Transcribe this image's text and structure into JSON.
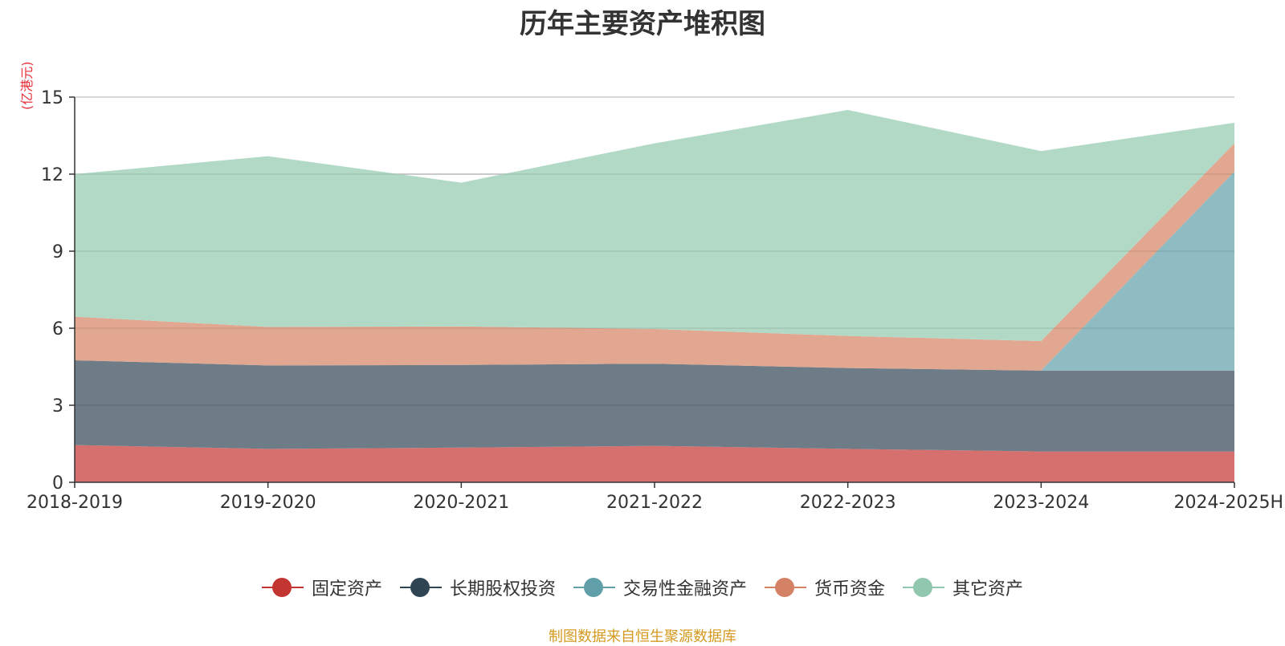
{
  "chart_data": {
    "type": "area",
    "stacked": true,
    "title": "历年主要资产堆积图",
    "unit": "(亿港元)",
    "categories": [
      "2018-2019",
      "2019-2020",
      "2020-2021",
      "2021-2022",
      "2022-2023",
      "2023-2024",
      "2024-2025H"
    ],
    "ylim": [
      0,
      15
    ],
    "yticks": [
      0,
      3,
      6,
      9,
      12,
      15
    ],
    "grid": true,
    "legend_position": "bottom",
    "series": [
      {
        "name": "固定资产",
        "color": "#c23531",
        "fill": "#d5706e",
        "values": [
          1.45,
          1.3,
          1.35,
          1.42,
          1.3,
          1.2,
          1.2
        ]
      },
      {
        "name": "长期股权投资",
        "color": "#2f4554",
        "fill": "#6e7c87",
        "values": [
          3.3,
          3.25,
          3.22,
          3.2,
          3.15,
          3.15,
          3.15
        ]
      },
      {
        "name": "交易性金融资产",
        "color": "#61a0a8",
        "fill": "#8fbbc2",
        "values": [
          0,
          0,
          0,
          0,
          0,
          0,
          7.75
        ]
      },
      {
        "name": "货币资金",
        "color": "#d48265",
        "fill": "#e1a790",
        "values": [
          1.7,
          1.5,
          1.5,
          1.35,
          1.25,
          1.15,
          1.1
        ]
      },
      {
        "name": "其它资产",
        "color": "#91c7ae",
        "fill": "#b2d9c6",
        "values": [
          5.55,
          6.65,
          5.6,
          7.23,
          8.8,
          7.4,
          0.8
        ]
      }
    ]
  },
  "footer": {
    "source": "制图数据来自恒生聚源数据库"
  }
}
